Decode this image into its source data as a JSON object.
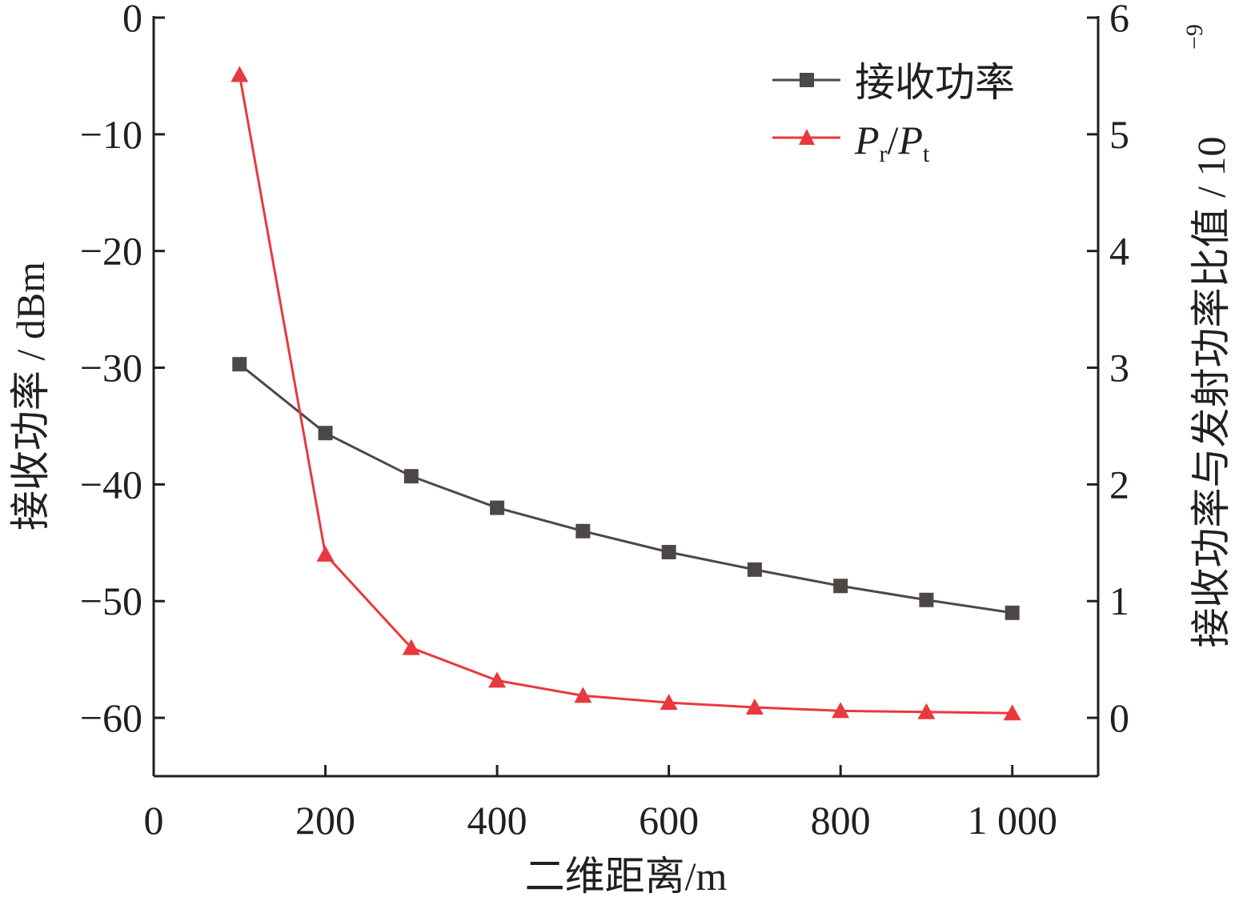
{
  "chart_data": {
    "type": "line",
    "title": "",
    "xlabel": "二维距离/m",
    "ylabel": "接收功率 / dBm",
    "y2label": "接收功率与发射功率比值 / 10",
    "y2label_exponent": "−9",
    "xlim": [
      0,
      1100
    ],
    "ylim": [
      -65,
      0
    ],
    "y2lim": [
      -0.5,
      6
    ],
    "grid": false,
    "legend_position": "top-right",
    "x_ticks": [
      0,
      200,
      400,
      600,
      800,
      1000
    ],
    "x_tick_labels": [
      "0",
      "200",
      "400",
      "600",
      "800",
      "1 000"
    ],
    "y_ticks": [
      0,
      -10,
      -20,
      -30,
      -40,
      -50,
      -60
    ],
    "y_tick_labels": [
      "0",
      "−10",
      "−20",
      "−30",
      "−40",
      "−50",
      "−60"
    ],
    "y2_ticks": [
      0,
      1,
      2,
      3,
      4,
      5,
      6
    ],
    "y2_tick_labels": [
      "0",
      "1",
      "2",
      "3",
      "4",
      "5",
      "6"
    ],
    "x": [
      100,
      200,
      300,
      400,
      500,
      600,
      700,
      800,
      900,
      1000
    ],
    "series": [
      {
        "name": "接收功率",
        "axis": "left",
        "marker": "square",
        "color": "#4d4846",
        "values": [
          -29.7,
          -35.6,
          -39.3,
          -42.0,
          -44.0,
          -45.8,
          -47.3,
          -48.7,
          -49.9,
          -51.0
        ]
      },
      {
        "name": "Pr/Pt",
        "legend_main": "P",
        "legend_sub1": "r",
        "legend_slash": "/",
        "legend_sub2": "t",
        "axis": "right",
        "marker": "triangle",
        "color": "#e8393e",
        "values": [
          5.51,
          1.4,
          0.6,
          0.32,
          0.19,
          0.13,
          0.09,
          0.06,
          0.05,
          0.04
        ]
      }
    ]
  }
}
